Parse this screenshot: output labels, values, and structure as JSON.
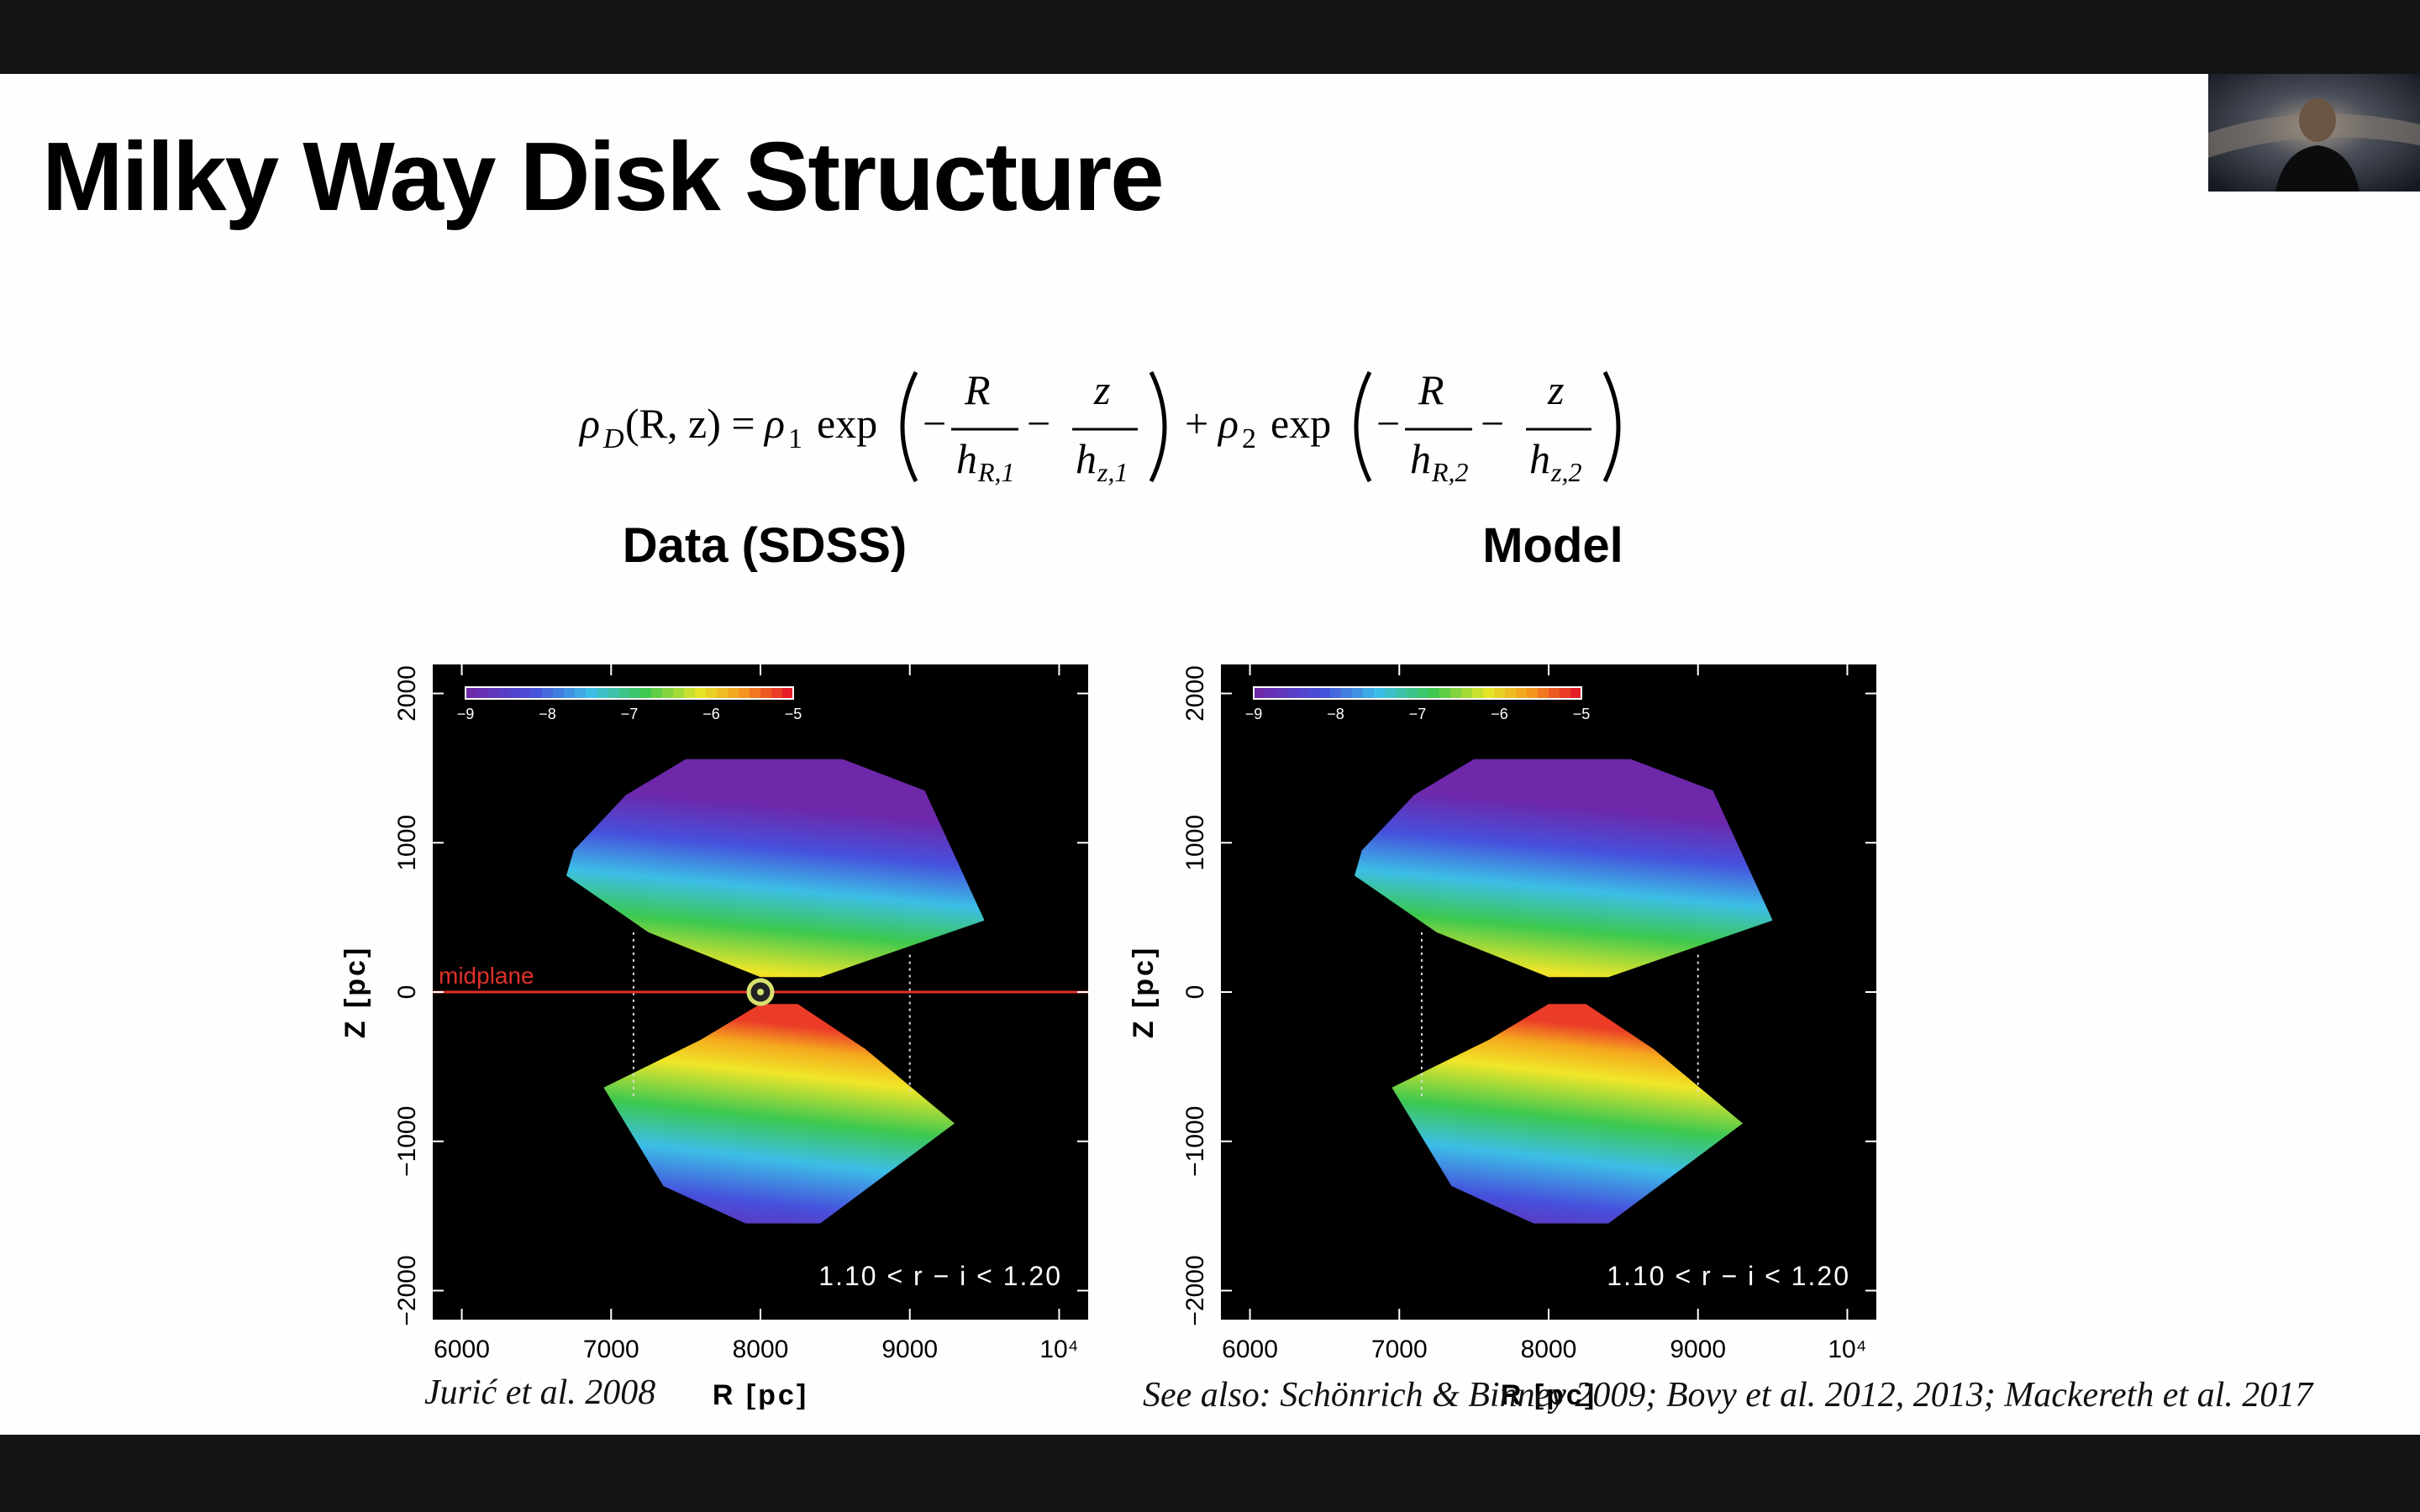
{
  "slide": {
    "title": "Milky Way Disk Structure",
    "citation_left": "Jurić et al. 2008",
    "citation_right": "See also: Schönrich & Binney 2009; Bovy et al. 2012, 2013; Mackereth et al. 2017"
  },
  "equation": {
    "lhs": "ρ",
    "lhs_sub": "D",
    "lhs_args": "(R, z) =",
    "rho1": "ρ",
    "rho1_sub": "1",
    "rho2": "ρ",
    "rho2_sub": "2",
    "exp": "exp",
    "num_R": "R",
    "num_z": "z",
    "den_hR1": "h",
    "den_hR1_sub": "R,1",
    "den_hz1": "h",
    "den_hz1_sub": "z,1",
    "den_hR2": "h",
    "den_hR2_sub": "R,2",
    "den_hz2": "h",
    "den_hz2_sub": "z,2",
    "minus": "−",
    "plus": "+"
  },
  "chart_data": [
    {
      "type": "heatmap",
      "title": "Data (SDSS)",
      "xlabel": "R [pc]",
      "ylabel": "Z [pc]",
      "xlim": [
        5800,
        10200
      ],
      "ylim": [
        -2200,
        2200
      ],
      "xticks": [
        "6000",
        "7000",
        "8000",
        "9000",
        "10⁴"
      ],
      "yticks": [
        "2000",
        "1000",
        "0",
        "−1000",
        "−2000"
      ],
      "colorbar_ticks": [
        "−9",
        "−8",
        "−7",
        "−6",
        "−5"
      ],
      "annotation": "1.10 < r − i < 1.20",
      "midplane_label": "midplane",
      "sun_position": {
        "R": 8000,
        "Z": 0
      }
    },
    {
      "type": "heatmap",
      "title": "Model",
      "xlabel": "R [pc]",
      "ylabel": "Z [pc]",
      "xlim": [
        5800,
        10200
      ],
      "ylim": [
        -2200,
        2200
      ],
      "xticks": [
        "6000",
        "7000",
        "8000",
        "9000",
        "10⁴"
      ],
      "yticks": [
        "2000",
        "1000",
        "0",
        "−1000",
        "−2000"
      ],
      "colorbar_ticks": [
        "−9",
        "−8",
        "−7",
        "−6",
        "−5"
      ],
      "annotation": "1.10 < r − i < 1.20"
    }
  ],
  "colors": {
    "midplane": "#e0302a",
    "background": "#000000"
  }
}
